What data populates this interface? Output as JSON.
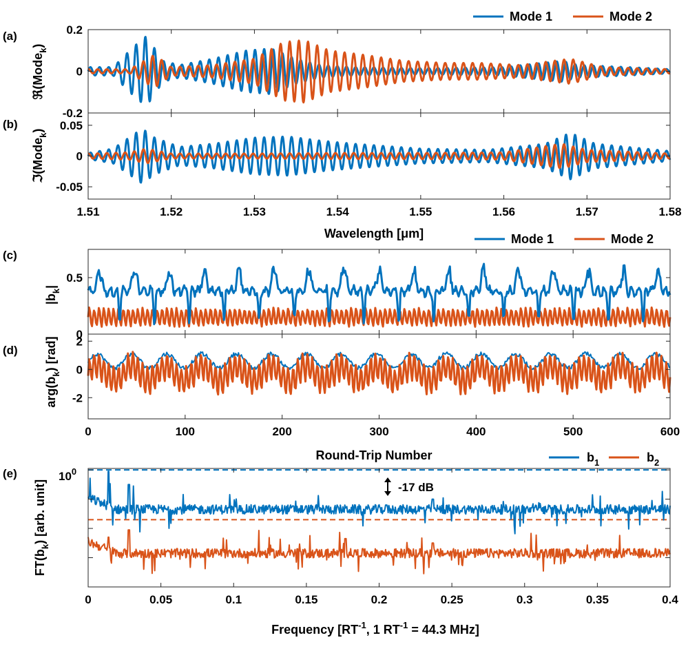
{
  "colors": {
    "mode1": "#0072BD",
    "mode2": "#D95319",
    "axis": "#262626"
  },
  "chart_data": [
    {
      "id": "a",
      "type": "line",
      "panel_label": "(a)",
      "ylabel": "ℜ(Mode",
      "ylabel_sub": "k",
      "ylabel_tail": ")",
      "xlim": [
        1.51,
        1.58
      ],
      "ylim": [
        -0.2,
        0.2
      ],
      "yticks": [
        -0.2,
        0,
        0.2
      ],
      "ytick_labels": [
        "-0.2",
        "0",
        "0.2"
      ],
      "legend": {
        "placement": "top-right",
        "entries": [
          "Mode 1",
          "Mode 2"
        ]
      },
      "series": [
        {
          "name": "Mode 1",
          "env_points": [
            [
              1.51,
              0.02
            ],
            [
              1.513,
              0.02
            ],
            [
              1.5155,
              0.12
            ],
            [
              1.517,
              0.17
            ],
            [
              1.519,
              0.05
            ],
            [
              1.521,
              0.03
            ],
            [
              1.525,
              0.06
            ],
            [
              1.529,
              0.1
            ],
            [
              1.532,
              0.11
            ],
            [
              1.535,
              0.06
            ],
            [
              1.538,
              0.03
            ],
            [
              1.542,
              0.02
            ],
            [
              1.55,
              0.015
            ],
            [
              1.56,
              0.02
            ],
            [
              1.567,
              0.05
            ],
            [
              1.569,
              0.03
            ],
            [
              1.575,
              0.02
            ],
            [
              1.58,
              0.01
            ]
          ],
          "period_um": 0.0011
        },
        {
          "name": "Mode 2",
          "env_points": [
            [
              1.51,
              0.01
            ],
            [
              1.515,
              0.01
            ],
            [
              1.518,
              0.08
            ],
            [
              1.52,
              0.02
            ],
            [
              1.525,
              0.03
            ],
            [
              1.53,
              0.06
            ],
            [
              1.5335,
              0.14
            ],
            [
              1.536,
              0.15
            ],
            [
              1.539,
              0.1
            ],
            [
              1.543,
              0.08
            ],
            [
              1.548,
              0.05
            ],
            [
              1.553,
              0.04
            ],
            [
              1.557,
              0.04
            ],
            [
              1.562,
              0.03
            ],
            [
              1.568,
              0.06
            ],
            [
              1.572,
              0.02
            ],
            [
              1.58,
              0.01
            ]
          ],
          "period_um": 0.0011
        }
      ]
    },
    {
      "id": "b",
      "type": "line",
      "panel_label": "(b)",
      "ylabel": "ℑ(Mode",
      "ylabel_sub": "k",
      "ylabel_tail": ")",
      "xlabel": "Wavelength [μm]",
      "xlim": [
        1.51,
        1.58
      ],
      "ylim": [
        -0.07,
        0.07
      ],
      "xticks": [
        1.51,
        1.52,
        1.53,
        1.54,
        1.55,
        1.56,
        1.57,
        1.58
      ],
      "xtick_labels": [
        "1.51",
        "1.52",
        "1.53",
        "1.54",
        "1.55",
        "1.56",
        "1.57",
        "1.58"
      ],
      "yticks": [
        -0.05,
        0,
        0.05
      ],
      "ytick_labels": [
        "-0.05",
        "0",
        "0.05"
      ],
      "series": [
        {
          "name": "Mode 1",
          "env_points": [
            [
              1.51,
              0.005
            ],
            [
              1.513,
              0.012
            ],
            [
              1.5165,
              0.045
            ],
            [
              1.518,
              0.03
            ],
            [
              1.521,
              0.015
            ],
            [
              1.525,
              0.02
            ],
            [
              1.53,
              0.03
            ],
            [
              1.534,
              0.032
            ],
            [
              1.538,
              0.025
            ],
            [
              1.542,
              0.02
            ],
            [
              1.55,
              0.012
            ],
            [
              1.558,
              0.01
            ],
            [
              1.565,
              0.02
            ],
            [
              1.568,
              0.038
            ],
            [
              1.571,
              0.02
            ],
            [
              1.58,
              0.008
            ]
          ],
          "period_um": 0.0011
        },
        {
          "name": "Mode 2",
          "env_points": [
            [
              1.51,
              0.004
            ],
            [
              1.515,
              0.006
            ],
            [
              1.517,
              0.012
            ],
            [
              1.52,
              0.004
            ],
            [
              1.53,
              0.004
            ],
            [
              1.54,
              0.005
            ],
            [
              1.55,
              0.005
            ],
            [
              1.56,
              0.006
            ],
            [
              1.567,
              0.02
            ],
            [
              1.57,
              0.01
            ],
            [
              1.58,
              0.004
            ]
          ],
          "period_um": 0.0011
        }
      ]
    },
    {
      "id": "c",
      "type": "line",
      "panel_label": "(c)",
      "ylabel": "|b",
      "ylabel_sub": "k",
      "ylabel_tail": "|",
      "xlim": [
        0,
        600
      ],
      "ylim": [
        0,
        0.75
      ],
      "yticks": [
        0,
        0.5
      ],
      "ytick_labels": [
        "0",
        "0.5"
      ],
      "legend": {
        "placement": "top-right",
        "entries": [
          "Mode 1",
          "Mode 2"
        ]
      },
      "series": [
        {
          "name": "Mode 1",
          "baseline": 0.38,
          "peak": 0.6,
          "dip": 0.12,
          "period_rt": 36
        },
        {
          "name": "Mode 2",
          "mean": 0.15,
          "amplitude": 0.09,
          "period_rt": 5
        }
      ]
    },
    {
      "id": "d",
      "type": "line",
      "panel_label": "(d)",
      "ylabel": "arg(b",
      "ylabel_sub": "k",
      "ylabel_tail": ") [rad]",
      "xlabel": "Round-Trip Number",
      "xlim": [
        0,
        600
      ],
      "ylim": [
        -3.5,
        2.5
      ],
      "xticks": [
        0,
        100,
        200,
        300,
        400,
        500,
        600
      ],
      "xtick_labels": [
        "0",
        "100",
        "200",
        "300",
        "400",
        "500",
        "600"
      ],
      "yticks": [
        -2,
        0,
        2
      ],
      "ytick_labels": [
        "-2",
        "0",
        "2"
      ],
      "series": [
        {
          "name": "Mode 1",
          "mean": 0.6,
          "amplitude": 0.5,
          "period_rt": 36
        },
        {
          "name": "Mode 2",
          "mean": -0.3,
          "amplitude": 0.9,
          "period_rt": 5
        }
      ]
    },
    {
      "id": "e",
      "type": "line",
      "panel_label": "(e)",
      "ylabel": "FT(b",
      "ylabel_sub": "k",
      "ylabel_tail": ") [arb. unit]",
      "xlabel": "Frequency [RT",
      "xlabel_sup": "-1",
      "xlabel_mid": ", 1 RT",
      "xlabel_sup2": "-1",
      "xlabel_tail": " = 44.3 MHz]",
      "yscale": "log",
      "xlim": [
        0,
        0.4
      ],
      "ylim_log10": [
        -4.0,
        0.05
      ],
      "xticks": [
        0,
        0.05,
        0.1,
        0.15,
        0.2,
        0.25,
        0.3,
        0.35,
        0.4
      ],
      "xtick_labels": [
        "0",
        "0.05",
        "0.1",
        "0.15",
        "0.2",
        "0.25",
        "0.3",
        "0.35",
        "0.4"
      ],
      "ytick_label": "10",
      "ytick_label_exp": "0",
      "annotation": {
        "text": "-17 dB",
        "x": 0.205
      },
      "legend": {
        "placement": "top-right",
        "entries": [
          "b",
          "b"
        ],
        "entry_subs": [
          "1",
          "2"
        ]
      },
      "reference_lines_log10": [
        0,
        -1.7
      ],
      "series": [
        {
          "name": "b1",
          "floor_log10": -1.35,
          "peaks": [
            [
              0.014,
              -0.05
            ],
            [
              0.028,
              -0.5
            ],
            [
              0.205,
              -1.2
            ],
            [
              0.237,
              -1.0
            ]
          ]
        },
        {
          "name": "b2",
          "floor_log10": -2.85,
          "peaks": [
            [
              0.014,
              -2.3
            ],
            [
              0.028,
              -2.05
            ],
            [
              0.177,
              -2.35
            ],
            [
              0.237,
              -2.5
            ]
          ]
        }
      ]
    }
  ]
}
